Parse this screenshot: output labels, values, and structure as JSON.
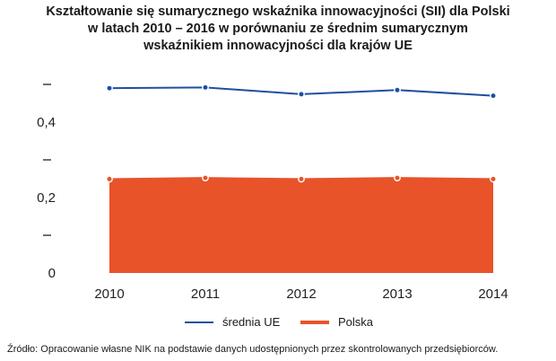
{
  "chart_data": {
    "type": "line",
    "title_lines": [
      "Kształtowanie się sumarycznego wskaźnika innowacyjności (SII) dla Polski",
      "w latach 2010 – 2016 w porównaniu ze średnim sumarycznym",
      "wskaźnikiem innowacyjności  dla krajów UE"
    ],
    "categories": [
      "2010",
      "2011",
      "2012",
      "2013",
      "2014"
    ],
    "series": [
      {
        "name": "średnia UE",
        "color": "#1f4fa0",
        "style": "line",
        "values": [
          0.49,
          0.492,
          0.474,
          0.485,
          0.47
        ]
      },
      {
        "name": "Polska",
        "color": "#e8532a",
        "style": "area",
        "values": [
          0.249,
          0.252,
          0.249,
          0.252,
          0.249
        ]
      }
    ],
    "y_ticks": [
      {
        "value": 0,
        "label": "0"
      },
      {
        "value": 0.1,
        "label": "–"
      },
      {
        "value": 0.2,
        "label": "0,2"
      },
      {
        "value": 0.3,
        "label": "–"
      },
      {
        "value": 0.4,
        "label": "0,4"
      },
      {
        "value": 0.5,
        "label": "–"
      }
    ],
    "ylim": [
      0,
      0.5
    ],
    "xlabel": "",
    "ylabel": "",
    "legend_position": "bottom"
  },
  "source_text": "Źródło: Opracowanie własne NIK na podstawie danych udostępnionych przez skontrolowanych przedsiębiorców."
}
